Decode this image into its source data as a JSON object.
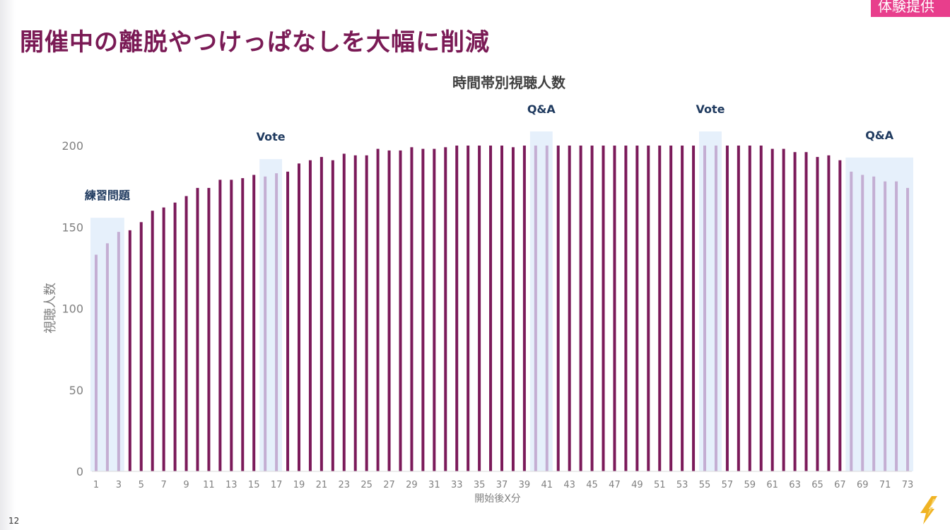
{
  "header": {
    "title": "開催中の離脱やつけっぱなしを大幅に削減",
    "tag": "体験提供"
  },
  "footer": {
    "page_number": "12"
  },
  "colors": {
    "title": "#7a1a55",
    "bar": "#7b1a5a",
    "bar_highlight": "#c4aed3",
    "highlight_bg": "#e6f0fb",
    "annotation": "#1f3a5f",
    "tag": "#e83e8c"
  },
  "chart_data": {
    "type": "bar",
    "title": "時間帯別視聴人数",
    "xlabel": "開始後X分",
    "ylabel": "視聴人数",
    "ylim": [
      0,
      200
    ],
    "yticks": [
      0,
      50,
      100,
      150,
      200
    ],
    "xtick_every": 2,
    "grid": false,
    "x": [
      1,
      2,
      3,
      4,
      5,
      6,
      7,
      8,
      9,
      10,
      11,
      12,
      13,
      14,
      15,
      16,
      17,
      18,
      19,
      20,
      21,
      22,
      23,
      24,
      25,
      26,
      27,
      28,
      29,
      30,
      31,
      32,
      33,
      34,
      35,
      36,
      37,
      38,
      39,
      40,
      41,
      42,
      43,
      44,
      45,
      46,
      47,
      48,
      49,
      50,
      51,
      52,
      53,
      54,
      55,
      56,
      57,
      58,
      59,
      60,
      61,
      62,
      63,
      64,
      65,
      66,
      67,
      68,
      69,
      70,
      71,
      72,
      73
    ],
    "values": [
      133,
      140,
      147,
      148,
      153,
      160,
      162,
      165,
      169,
      174,
      174,
      179,
      179,
      180,
      182,
      181,
      183,
      184,
      189,
      191,
      193,
      191,
      195,
      194,
      194,
      198,
      197,
      197,
      199,
      198,
      198,
      199,
      200,
      200,
      200,
      200,
      200,
      199,
      200,
      200,
      200,
      200,
      200,
      200,
      200,
      200,
      200,
      200,
      200,
      200,
      200,
      200,
      200,
      200,
      200,
      200,
      200,
      200,
      200,
      200,
      198,
      198,
      196,
      196,
      193,
      194,
      191,
      184,
      182,
      181,
      178,
      178,
      174
    ],
    "highlight_ranges": [
      {
        "label": "練習問題",
        "start": 1,
        "end": 3
      },
      {
        "label": "Vote",
        "start": 16,
        "end": 17
      },
      {
        "label": "Q&A",
        "start": 40,
        "end": 41
      },
      {
        "label": "Vote",
        "start": 55,
        "end": 56
      },
      {
        "label": "Q&A",
        "start": 68,
        "end": 73
      }
    ]
  }
}
